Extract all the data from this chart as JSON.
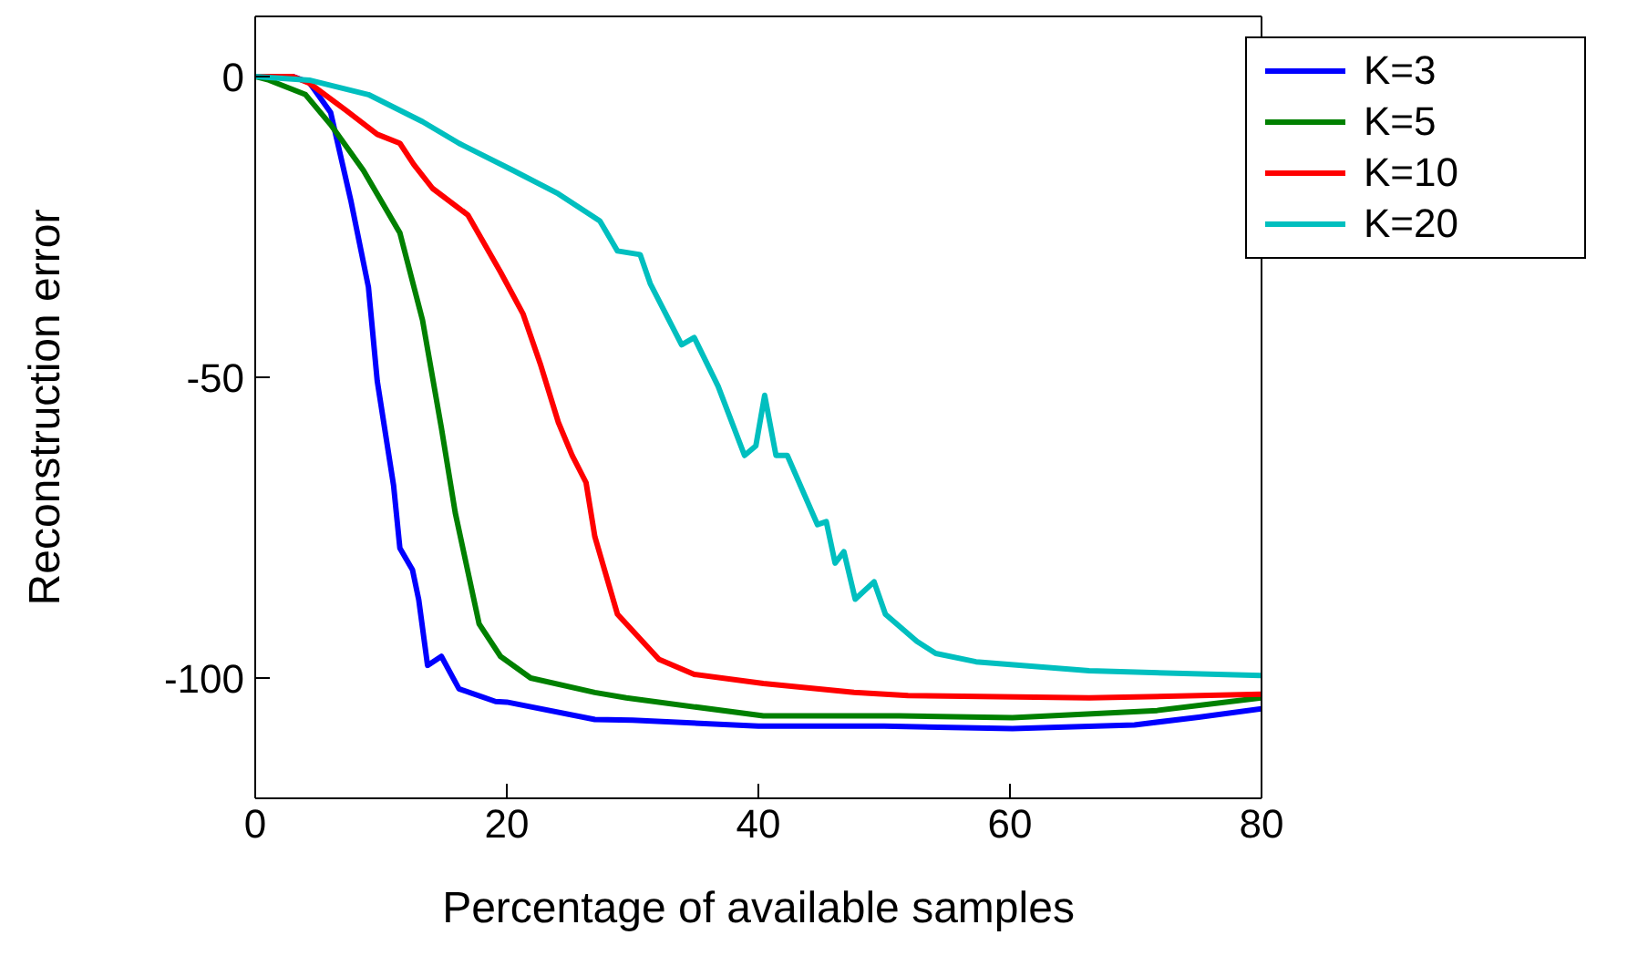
{
  "chart_data": {
    "type": "line",
    "xlabel": "Percentage of available samples",
    "ylabel": "Reconstruction error",
    "xlim": [
      0,
      80
    ],
    "xticks": [
      0,
      20,
      40,
      60,
      80
    ],
    "ylim": [
      -120,
      10
    ],
    "yticks": [
      -100,
      -50,
      0
    ],
    "grid": false,
    "legend": "top right",
    "marker": "none",
    "line_style": "solid",
    "series": [
      {
        "name": "K=3",
        "color": "#0000ff",
        "x": [
          0,
          3,
          4.3,
          6,
          7.6,
          9,
          9.7,
          11,
          11.5,
          12.5,
          13,
          13.7,
          14.8,
          16.2,
          19.1,
          20,
          27,
          30,
          40,
          50,
          60.2,
          69.9,
          75,
          80
        ],
        "values": [
          0,
          0,
          -1,
          -6,
          -20.6,
          -35,
          -50.6,
          -68,
          -78.4,
          -82,
          -87,
          -97.9,
          -96.4,
          -101.8,
          -103.9,
          -104,
          -106.9,
          -107,
          -108,
          -108,
          -108.4,
          -107.8,
          -106.5,
          -105.1
        ]
      },
      {
        "name": "K=5",
        "color": "#008000",
        "x": [
          0,
          1.1,
          4,
          6,
          8.6,
          11.5,
          13.3,
          14.8,
          15.9,
          17.8,
          19.5,
          21.9,
          27,
          29.5,
          40.4,
          51.2,
          60.2,
          71.7,
          80
        ],
        "values": [
          0,
          -0.6,
          -3,
          -8,
          -15.6,
          -26,
          -40.5,
          -58.4,
          -72.5,
          -91,
          -96.4,
          -100,
          -102.4,
          -103.3,
          -106.3,
          -106.3,
          -106.6,
          -105.4,
          -103.3
        ]
      },
      {
        "name": "K=10",
        "color": "#ff0000",
        "x": [
          0,
          3,
          4.3,
          7.2,
          9.7,
          11.5,
          12.6,
          14.1,
          16.9,
          19.5,
          21.3,
          22.7,
          24.1,
          25.2,
          26.3,
          27,
          28.8,
          32.1,
          34.9,
          40.4,
          47.6,
          51.9,
          66.3,
          80
        ],
        "values": [
          0,
          0,
          -1.1,
          -5.6,
          -9.6,
          -11.1,
          -14.6,
          -18.6,
          -23,
          -32.5,
          -39.5,
          -48,
          -57.5,
          -63,
          -67.5,
          -76.5,
          -89.4,
          -96.9,
          -99.4,
          -100.9,
          -102.4,
          -102.9,
          -103.3,
          -102.7
        ]
      },
      {
        "name": "K=20",
        "color": "#00bfbf",
        "x": [
          0,
          4.3,
          9,
          13.3,
          16.2,
          20.5,
          24.1,
          27.4,
          28.8,
          30.6,
          31.4,
          33.9,
          34.9,
          36.8,
          38.9,
          39.8,
          40.5,
          41.4,
          42.3,
          44.7,
          45.4,
          46.1,
          46.8,
          47.7,
          49.2,
          50.1,
          52.6,
          54.1,
          57.3,
          66.3,
          80
        ],
        "values": [
          0,
          -0.6,
          -3,
          -7.5,
          -11.1,
          -15.6,
          -19.5,
          -24,
          -29,
          -29.6,
          -34.4,
          -44.6,
          -43.4,
          -51.5,
          -63,
          -61.4,
          -53,
          -63,
          -63,
          -74.5,
          -74,
          -80.9,
          -79,
          -86.9,
          -84,
          -89.4,
          -93.9,
          -95.9,
          -97.3,
          -98.8,
          -99.6
        ]
      }
    ]
  }
}
